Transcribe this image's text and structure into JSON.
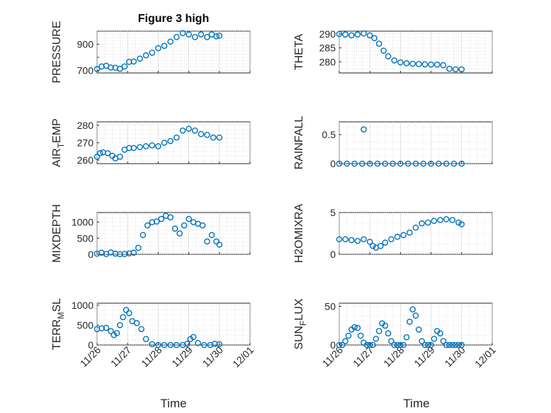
{
  "figure": {
    "title": "Figure 3 high",
    "xlabel": "Time",
    "xticks": [
      "11/26",
      "11/27",
      "11/28",
      "11/29",
      "11/30",
      "12/01"
    ]
  },
  "colors": {
    "marker": "#0072bd",
    "axis": "#262626",
    "grid": "#d0d0d0"
  },
  "chart_data": [
    {
      "type": "scatter",
      "ylabel": "PRESSURE",
      "ylabel_parts": [
        "PRESSURE"
      ],
      "ylim": [
        680,
        1000
      ],
      "yticks": [
        700,
        800,
        900
      ],
      "ytick_labels": [
        "700",
        "",
        "900"
      ],
      "grid": true,
      "x": [
        0,
        0.15,
        0.3,
        0.45,
        0.6,
        0.75,
        0.9,
        1.05,
        1.2,
        1.4,
        1.6,
        1.8,
        2.0,
        2.2,
        2.4,
        2.6,
        2.8,
        3.0,
        3.2,
        3.4,
        3.6,
        3.75,
        3.9,
        4.0
      ],
      "y": [
        710,
        730,
        735,
        722,
        720,
        712,
        730,
        765,
        768,
        790,
        815,
        835,
        870,
        888,
        920,
        955,
        985,
        975,
        955,
        975,
        955,
        975,
        960,
        965
      ]
    },
    {
      "type": "scatter",
      "ylabel": "THETA",
      "ylabel_parts": [
        "THETA"
      ],
      "ylim": [
        276,
        291
      ],
      "yticks": [
        280,
        285,
        290
      ],
      "ytick_labels": [
        "280",
        "285",
        "290"
      ],
      "grid": true,
      "x": [
        0,
        0.2,
        0.4,
        0.6,
        0.8,
        1.0,
        1.15,
        1.3,
        1.45,
        1.6,
        1.8,
        2.0,
        2.2,
        2.4,
        2.6,
        2.8,
        3.0,
        3.2,
        3.4,
        3.6,
        3.8,
        4.0
      ],
      "y": [
        290,
        289.8,
        289.5,
        289.8,
        290.2,
        289.5,
        288.5,
        286.5,
        284,
        282,
        280.5,
        279.8,
        279.5,
        279.3,
        279.2,
        279.1,
        279,
        279,
        278.8,
        277.5,
        277.3,
        277.3
      ]
    },
    {
      "type": "scatter",
      "ylabel": "AIR_TEMP",
      "ylabel_parts": [
        "AIR",
        "T",
        "EMP"
      ],
      "ylim": [
        258,
        282
      ],
      "yticks": [
        260,
        270,
        280
      ],
      "ytick_labels": [
        "260",
        "270",
        "280"
      ],
      "grid": true,
      "x": [
        0,
        0.1,
        0.2,
        0.35,
        0.5,
        0.6,
        0.75,
        0.9,
        1.05,
        1.2,
        1.4,
        1.6,
        1.8,
        2.0,
        2.2,
        2.4,
        2.6,
        2.8,
        3.0,
        3.2,
        3.4,
        3.6,
        3.8,
        4.0
      ],
      "y": [
        262,
        264,
        264.5,
        264,
        262.5,
        261,
        262,
        266,
        267,
        267,
        267.5,
        268,
        268.5,
        268,
        270,
        271,
        273,
        277,
        278,
        277,
        275,
        274.5,
        273,
        273
      ]
    },
    {
      "type": "scatter",
      "ylabel": "RAINFALL",
      "ylabel_parts": [
        "RAINFALL"
      ],
      "ylim": [
        0,
        0.72
      ],
      "yticks": [
        0,
        0.5
      ],
      "ytick_labels": [
        "0",
        "0.5"
      ],
      "grid": true,
      "x": [
        0,
        0.25,
        0.5,
        0.75,
        1.0,
        1.25,
        1.5,
        1.75,
        2.0,
        2.25,
        2.5,
        2.75,
        3.0,
        3.25,
        3.5,
        3.75,
        4.0,
        0.8
      ],
      "y": [
        0,
        0,
        0,
        0,
        0,
        0,
        0,
        0,
        0,
        0,
        0,
        0,
        0,
        0,
        0,
        0,
        0,
        0.59
      ]
    },
    {
      "type": "scatter",
      "ylabel": "MIXDEPTH",
      "ylabel_parts": [
        "MIXDEPTH"
      ],
      "ylim": [
        0,
        1300
      ],
      "yticks": [
        0,
        500,
        1000
      ],
      "ytick_labels": [
        "0",
        "500",
        "1000"
      ],
      "grid": true,
      "x": [
        0,
        0.15,
        0.3,
        0.45,
        0.6,
        0.75,
        0.9,
        1.05,
        1.2,
        1.35,
        1.5,
        1.65,
        1.8,
        1.95,
        2.1,
        2.25,
        2.4,
        2.55,
        2.7,
        2.85,
        3.0,
        3.15,
        3.3,
        3.45,
        3.6,
        3.75,
        3.9,
        4.0
      ],
      "y": [
        20,
        50,
        10,
        60,
        20,
        5,
        10,
        30,
        50,
        200,
        600,
        900,
        1000,
        1020,
        1100,
        1200,
        1150,
        800,
        650,
        900,
        1100,
        1000,
        950,
        900,
        400,
        600,
        400,
        300
      ]
    },
    {
      "type": "scatter",
      "ylabel": "H2OMIXRA",
      "ylabel_parts": [
        "H2OMIXRA"
      ],
      "ylim": [
        0,
        5
      ],
      "yticks": [
        0,
        5
      ],
      "ytick_labels": [
        "0",
        "5"
      ],
      "grid": true,
      "x": [
        0,
        0.2,
        0.4,
        0.6,
        0.8,
        1.0,
        1.1,
        1.2,
        1.35,
        1.5,
        1.7,
        1.9,
        2.1,
        2.3,
        2.5,
        2.7,
        2.9,
        3.1,
        3.3,
        3.5,
        3.7,
        3.9,
        4.0
      ],
      "y": [
        1.8,
        1.8,
        1.7,
        1.6,
        1.8,
        1.5,
        1.0,
        0.8,
        1.0,
        1.4,
        1.8,
        2.1,
        2.3,
        2.6,
        3.2,
        3.7,
        3.8,
        4.0,
        4.1,
        4.2,
        4.1,
        3.8,
        3.6
      ]
    },
    {
      "type": "scatter",
      "ylabel": "TERR_MSL",
      "ylabel_parts": [
        "TERR",
        "M",
        "SL"
      ],
      "ylim": [
        0,
        1050
      ],
      "yticks": [
        0,
        500,
        1000
      ],
      "ytick_labels": [
        "0",
        "500",
        "1000"
      ],
      "grid": true,
      "x": [
        0,
        0.15,
        0.3,
        0.45,
        0.55,
        0.65,
        0.75,
        0.85,
        0.95,
        1.05,
        1.15,
        1.3,
        1.45,
        1.6,
        1.8,
        2.0,
        2.2,
        2.4,
        2.6,
        2.8,
        2.95,
        3.05,
        3.15,
        3.3,
        3.5,
        3.7,
        3.85,
        4.0
      ],
      "y": [
        400,
        420,
        430,
        350,
        250,
        300,
        500,
        700,
        880,
        800,
        600,
        550,
        400,
        150,
        20,
        0,
        0,
        0,
        0,
        0,
        30,
        150,
        200,
        50,
        0,
        0,
        30,
        20
      ]
    },
    {
      "type": "scatter",
      "ylabel": "SUN_FLUX",
      "ylabel_parts": [
        "SUN",
        "F",
        "LUX"
      ],
      "ylim": [
        0,
        54
      ],
      "yticks": [
        0,
        50
      ],
      "ytick_labels": [
        "0",
        "50"
      ],
      "grid": true,
      "x": [
        0,
        0.1,
        0.2,
        0.3,
        0.4,
        0.5,
        0.6,
        0.7,
        0.8,
        0.9,
        1.0,
        1.1,
        1.2,
        1.3,
        1.4,
        1.5,
        1.6,
        1.7,
        1.8,
        1.9,
        2.0,
        2.1,
        2.2,
        2.3,
        2.4,
        2.5,
        2.6,
        2.7,
        2.8,
        2.9,
        3.0,
        3.1,
        3.2,
        3.3,
        3.4,
        3.5,
        3.6,
        3.7,
        3.8,
        3.9,
        4.0
      ],
      "y": [
        0,
        0,
        5,
        12,
        20,
        23,
        22,
        12,
        3,
        0,
        0,
        0,
        8,
        18,
        28,
        25,
        15,
        5,
        0,
        0,
        0,
        0,
        10,
        30,
        46,
        38,
        20,
        5,
        0,
        0,
        0,
        8,
        18,
        15,
        5,
        0,
        0,
        0,
        0,
        0,
        0
      ]
    }
  ]
}
